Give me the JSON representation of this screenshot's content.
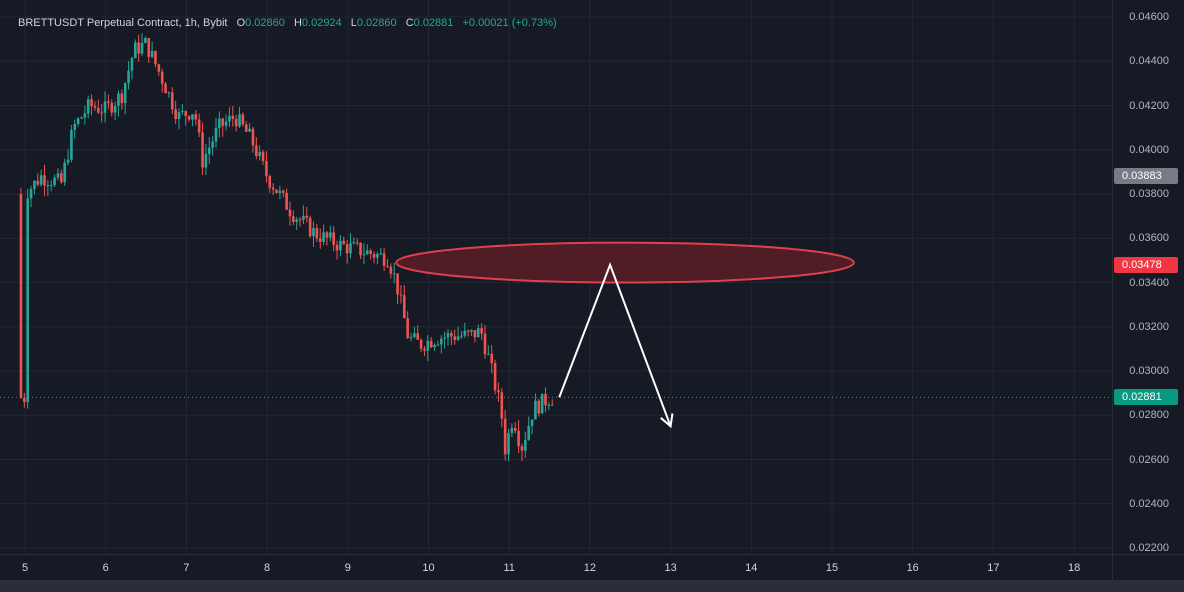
{
  "legend": {
    "symbol": "BRETTUSDT Perpetual Contract, 1h, Bybit",
    "o_label": "O",
    "o_value": "0.02860",
    "h_label": "H",
    "h_value": "0.02924",
    "l_label": "L",
    "l_value": "0.02860",
    "c_label": "C",
    "c_value": "0.02881",
    "change": "+0.00021 (+0.73%)"
  },
  "price_axis": {
    "ticks": [
      "0.04600",
      "0.04400",
      "0.04200",
      "0.04000",
      "0.03800",
      "0.03600",
      "0.03400",
      "0.03200",
      "0.03000",
      "0.02800",
      "0.02600",
      "0.02400",
      "0.02200"
    ],
    "tick_values": [
      0.046,
      0.044,
      0.042,
      0.04,
      0.038,
      0.036,
      0.034,
      0.032,
      0.03,
      0.028,
      0.026,
      0.024,
      0.022
    ],
    "tags": [
      {
        "text": "0.03883",
        "value": 0.03883,
        "color": "#787b86"
      },
      {
        "text": "0.03478",
        "value": 0.03478,
        "color": "#f23645"
      },
      {
        "text": "0.02881",
        "value": 0.02881,
        "color": "#089981"
      }
    ]
  },
  "time_axis": {
    "labels": [
      "5",
      "6",
      "7",
      "8",
      "9",
      "10",
      "11",
      "12",
      "13",
      "14",
      "15",
      "16",
      "17",
      "18"
    ]
  },
  "colors": {
    "up": "#26a69a",
    "down": "#ef5350",
    "background": "#161a25",
    "grid": "#232733",
    "zone_fill": "#5a1f28",
    "zone_stroke": "#e0404d",
    "projection": "#ffffff",
    "last_price_line": "#26a69a"
  },
  "chart_data": {
    "type": "candlestick",
    "symbol": "BRETTUSDT Perpetual Contract",
    "interval": "1h",
    "exchange": "Bybit",
    "y_range": [
      0.0218,
      0.0462
    ],
    "x_range_days": [
      4.9,
      18.4
    ],
    "last_price": 0.02881,
    "path": [
      [
        5.0,
        0.038
      ],
      [
        5.2,
        0.0388
      ],
      [
        5.45,
        0.0385
      ],
      [
        5.6,
        0.041
      ],
      [
        5.8,
        0.042
      ],
      [
        6.0,
        0.0418
      ],
      [
        6.2,
        0.0425
      ],
      [
        6.35,
        0.0445
      ],
      [
        6.5,
        0.0448
      ],
      [
        6.7,
        0.0432
      ],
      [
        6.9,
        0.0415
      ],
      [
        7.1,
        0.0418
      ],
      [
        7.2,
        0.0395
      ],
      [
        7.4,
        0.041
      ],
      [
        7.6,
        0.0415
      ],
      [
        7.8,
        0.0405
      ],
      [
        8.0,
        0.0388
      ],
      [
        8.3,
        0.0372
      ],
      [
        8.6,
        0.0362
      ],
      [
        8.9,
        0.0357
      ],
      [
        9.2,
        0.0354
      ],
      [
        9.5,
        0.0351
      ],
      [
        9.6,
        0.034
      ],
      [
        9.75,
        0.0315
      ],
      [
        9.9,
        0.0312
      ],
      [
        10.1,
        0.0315
      ],
      [
        10.3,
        0.0316
      ],
      [
        10.5,
        0.0316
      ],
      [
        10.65,
        0.0318
      ],
      [
        10.75,
        0.0305
      ],
      [
        10.9,
        0.0282
      ],
      [
        10.95,
        0.0265
      ],
      [
        11.05,
        0.028
      ],
      [
        11.15,
        0.0265
      ],
      [
        11.3,
        0.0283
      ],
      [
        11.5,
        0.0288
      ]
    ],
    "annotations": [
      {
        "type": "ellipse",
        "label": "resistance zone",
        "center": [
          12.35,
          0.0349
        ],
        "x_span": [
          9.6,
          15.27
        ],
        "y_span": [
          0.034,
          0.0358
        ]
      },
      {
        "type": "projection_path",
        "points": [
          [
            11.62,
            0.02881
          ],
          [
            12.25,
            0.0348
          ],
          [
            13.0,
            0.0275
          ]
        ],
        "arrow": true
      }
    ]
  }
}
